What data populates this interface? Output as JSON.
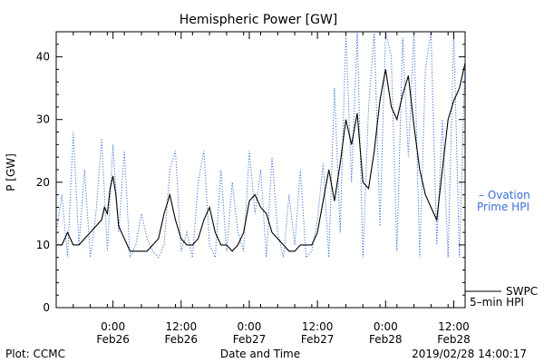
{
  "chart_data": {
    "type": "line",
    "title": "Hemispheric Power [GW]",
    "xlabel": "Date and Time",
    "ylabel": "P [GW]",
    "ylim": [
      0,
      44
    ],
    "xlim": [
      "2019-02-25T14:00",
      "2019-02-28T14:00"
    ],
    "y_ticks": [
      0,
      10,
      20,
      30,
      40
    ],
    "x_ticks": [
      {
        "t": "2019-02-26T00:00",
        "time": "0:00",
        "date": "Feb26"
      },
      {
        "t": "2019-02-26T12:00",
        "time": "12:00",
        "date": "Feb26"
      },
      {
        "t": "2019-02-27T00:00",
        "time": "0:00",
        "date": "Feb27"
      },
      {
        "t": "2019-02-27T12:00",
        "time": "12:00",
        "date": "Feb27"
      },
      {
        "t": "2019-02-28T00:00",
        "time": "0:00",
        "date": "Feb28"
      },
      {
        "t": "2019-02-28T12:00",
        "time": "12:00",
        "date": "Feb28"
      }
    ],
    "grid": false,
    "legend_placement": "right",
    "series": [
      {
        "name": "SWPC 5-min HPI",
        "style": "solid",
        "color": "#000000",
        "x": [
          "2019-02-25T14:00",
          "2019-02-25T15:00",
          "2019-02-25T16:00",
          "2019-02-25T17:00",
          "2019-02-25T17:30",
          "2019-02-25T18:00",
          "2019-02-25T19:00",
          "2019-02-25T20:00",
          "2019-02-25T21:00",
          "2019-02-25T22:00",
          "2019-02-25T22:30",
          "2019-02-25T23:00",
          "2019-02-25T23:30",
          "2019-02-26T00:00",
          "2019-02-26T00:30",
          "2019-02-26T01:00",
          "2019-02-26T02:00",
          "2019-02-26T03:00",
          "2019-02-26T04:00",
          "2019-02-26T05:00",
          "2019-02-26T06:00",
          "2019-02-26T07:00",
          "2019-02-26T08:00",
          "2019-02-26T09:00",
          "2019-02-26T10:00",
          "2019-02-26T11:00",
          "2019-02-26T12:00",
          "2019-02-26T13:00",
          "2019-02-26T14:00",
          "2019-02-26T15:00",
          "2019-02-26T16:00",
          "2019-02-26T17:00",
          "2019-02-26T18:00",
          "2019-02-26T19:00",
          "2019-02-26T20:00",
          "2019-02-26T21:00",
          "2019-02-26T22:00",
          "2019-02-26T23:00",
          "2019-02-27T00:00",
          "2019-02-27T01:00",
          "2019-02-27T02:00",
          "2019-02-27T03:00",
          "2019-02-27T04:00",
          "2019-02-27T05:00",
          "2019-02-27T06:00",
          "2019-02-27T07:00",
          "2019-02-27T08:00",
          "2019-02-27T09:00",
          "2019-02-27T10:00",
          "2019-02-27T11:00",
          "2019-02-27T12:00",
          "2019-02-27T13:00",
          "2019-02-27T14:00",
          "2019-02-27T15:00",
          "2019-02-27T16:00",
          "2019-02-27T17:00",
          "2019-02-27T18:00",
          "2019-02-27T19:00",
          "2019-02-27T20:00",
          "2019-02-27T21:00",
          "2019-02-27T22:00",
          "2019-02-27T23:00",
          "2019-02-28T00:00",
          "2019-02-28T01:00",
          "2019-02-28T02:00",
          "2019-02-28T03:00",
          "2019-02-28T04:00",
          "2019-02-28T05:00",
          "2019-02-28T06:00",
          "2019-02-28T07:00",
          "2019-02-28T08:00",
          "2019-02-28T09:00",
          "2019-02-28T10:00",
          "2019-02-28T11:00",
          "2019-02-28T12:00",
          "2019-02-28T13:00",
          "2019-02-28T14:00"
        ],
        "y": [
          10,
          10,
          12,
          10,
          10,
          10,
          11,
          12,
          13,
          14,
          16,
          15,
          19,
          21,
          18,
          13,
          11,
          9,
          9,
          9,
          9,
          10,
          11,
          15,
          18,
          14,
          11,
          10,
          10,
          11,
          14,
          16,
          12,
          10,
          10,
          9,
          10,
          12,
          17,
          18,
          16,
          15,
          12,
          11,
          10,
          9,
          9,
          10,
          10,
          10,
          12,
          17,
          22,
          17,
          23,
          30,
          26,
          31,
          20,
          19,
          25,
          33,
          38,
          32,
          30,
          34,
          37,
          29,
          22,
          18,
          16,
          14,
          22,
          30,
          33,
          35,
          39
        ]
      },
      {
        "name": "Ovation Prime HPI",
        "style": "dotted",
        "color": "#3a6fd8",
        "x": [
          "2019-02-25T14:00",
          "2019-02-25T15:00",
          "2019-02-25T16:00",
          "2019-02-25T17:00",
          "2019-02-25T18:00",
          "2019-02-25T19:00",
          "2019-02-25T20:00",
          "2019-02-25T21:00",
          "2019-02-25T22:00",
          "2019-02-25T23:00",
          "2019-02-26T00:00",
          "2019-02-26T01:00",
          "2019-02-26T02:00",
          "2019-02-26T03:00",
          "2019-02-26T04:00",
          "2019-02-26T05:00",
          "2019-02-26T06:00",
          "2019-02-26T07:00",
          "2019-02-26T08:00",
          "2019-02-26T09:00",
          "2019-02-26T10:00",
          "2019-02-26T11:00",
          "2019-02-26T12:00",
          "2019-02-26T13:00",
          "2019-02-26T14:00",
          "2019-02-26T15:00",
          "2019-02-26T16:00",
          "2019-02-26T17:00",
          "2019-02-26T18:00",
          "2019-02-26T19:00",
          "2019-02-26T20:00",
          "2019-02-26T21:00",
          "2019-02-26T22:00",
          "2019-02-26T23:00",
          "2019-02-27T00:00",
          "2019-02-27T01:00",
          "2019-02-27T02:00",
          "2019-02-27T03:00",
          "2019-02-27T04:00",
          "2019-02-27T05:00",
          "2019-02-27T06:00",
          "2019-02-27T07:00",
          "2019-02-27T08:00",
          "2019-02-27T09:00",
          "2019-02-27T10:00",
          "2019-02-27T11:00",
          "2019-02-27T12:00",
          "2019-02-27T13:00",
          "2019-02-27T14:00",
          "2019-02-27T15:00",
          "2019-02-27T16:00",
          "2019-02-27T17:00",
          "2019-02-27T18:00",
          "2019-02-27T19:00",
          "2019-02-27T20:00",
          "2019-02-27T21:00",
          "2019-02-27T22:00",
          "2019-02-27T23:00",
          "2019-02-28T00:00",
          "2019-02-28T01:00",
          "2019-02-28T02:00",
          "2019-02-28T03:00",
          "2019-02-28T04:00",
          "2019-02-28T05:00",
          "2019-02-28T06:00",
          "2019-02-28T07:00",
          "2019-02-28T08:00",
          "2019-02-28T09:00",
          "2019-02-28T10:00",
          "2019-02-28T11:00",
          "2019-02-28T12:00",
          "2019-02-28T13:00",
          "2019-02-28T14:00"
        ],
        "y": [
          12,
          18,
          8,
          28,
          10,
          22,
          8,
          15,
          27,
          9,
          26,
          12,
          25,
          8,
          10,
          15,
          11,
          9,
          8,
          10,
          22,
          25,
          9,
          12,
          8,
          20,
          25,
          10,
          8,
          22,
          9,
          20,
          12,
          9,
          25,
          15,
          22,
          8,
          24,
          12,
          8,
          18,
          10,
          22,
          8,
          9,
          14,
          23,
          8,
          35,
          12,
          44,
          20,
          44,
          8,
          32,
          44,
          13,
          44,
          40,
          9,
          43,
          24,
          44,
          8,
          38,
          44,
          10,
          30,
          8,
          44,
          8,
          40
        ]
      }
    ]
  },
  "legend": {
    "ovation_line1": "– Ovation",
    "ovation_line2": "Prime HPI",
    "swpc_line1": "SWPC",
    "swpc_line2": "5–min HPI"
  },
  "footer": {
    "left": "Plot: CCMC",
    "right": "2019/02/28 14:00:17"
  },
  "colors": {
    "ovation": "#3a6fd8",
    "swpc": "#000000"
  }
}
